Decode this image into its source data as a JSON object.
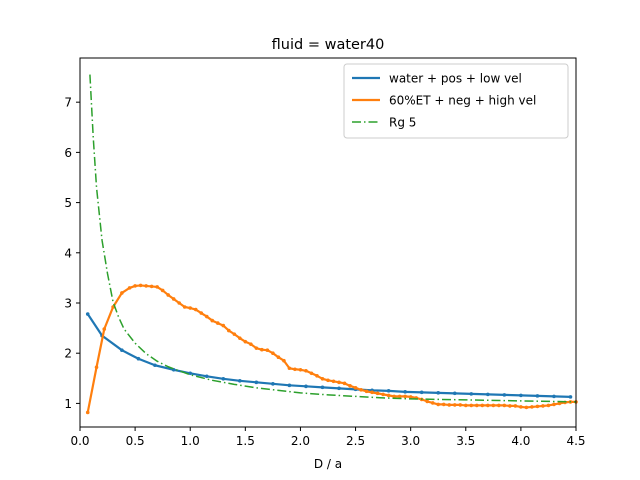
{
  "chart_data": {
    "type": "line",
    "title": "fluid = water40",
    "xlabel": "D / a",
    "ylabel": "",
    "xlim": [
      0.0,
      4.5
    ],
    "ylim": [
      0.53,
      7.88
    ],
    "xticks": [
      "0.0",
      "0.5",
      "1.0",
      "1.5",
      "2.0",
      "2.5",
      "3.0",
      "3.5",
      "4.0",
      "4.5"
    ],
    "yticks": [
      "1",
      "2",
      "3",
      "4",
      "5",
      "6",
      "7"
    ],
    "grid": false,
    "legend_position": "top-right",
    "series": [
      {
        "name": "water + pos + low vel",
        "color": "#1f77b4",
        "style": "solid-markers",
        "x": [
          0.07,
          0.2,
          0.38,
          0.53,
          0.68,
          0.85,
          1.0,
          1.15,
          1.3,
          1.45,
          1.6,
          1.75,
          1.9,
          2.05,
          2.2,
          2.35,
          2.5,
          2.65,
          2.8,
          2.95,
          3.1,
          3.25,
          3.4,
          3.55,
          3.7,
          3.85,
          4.0,
          4.15,
          4.3,
          4.45
        ],
        "y": [
          2.78,
          2.35,
          2.06,
          1.89,
          1.76,
          1.67,
          1.6,
          1.54,
          1.49,
          1.45,
          1.42,
          1.39,
          1.36,
          1.34,
          1.32,
          1.3,
          1.28,
          1.26,
          1.25,
          1.23,
          1.22,
          1.21,
          1.2,
          1.19,
          1.18,
          1.17,
          1.16,
          1.15,
          1.14,
          1.13
        ]
      },
      {
        "name": "60%ET + neg + high vel",
        "color": "#ff7f0e",
        "style": "solid-markers",
        "x": [
          0.07,
          0.15,
          0.22,
          0.3,
          0.38,
          0.45,
          0.5,
          0.55,
          0.6,
          0.65,
          0.7,
          0.75,
          0.8,
          0.85,
          0.9,
          0.95,
          1.0,
          1.05,
          1.1,
          1.15,
          1.2,
          1.25,
          1.3,
          1.35,
          1.4,
          1.45,
          1.5,
          1.55,
          1.6,
          1.65,
          1.7,
          1.75,
          1.8,
          1.85,
          1.9,
          1.95,
          2.0,
          2.05,
          2.1,
          2.15,
          2.2,
          2.25,
          2.3,
          2.35,
          2.4,
          2.45,
          2.5,
          2.55,
          2.6,
          2.65,
          2.7,
          2.75,
          2.8,
          2.85,
          2.9,
          2.95,
          3.0,
          3.05,
          3.1,
          3.15,
          3.2,
          3.25,
          3.3,
          3.35,
          3.4,
          3.45,
          3.5,
          3.55,
          3.6,
          3.65,
          3.7,
          3.75,
          3.8,
          3.85,
          3.9,
          3.95,
          4.0,
          4.05,
          4.1,
          4.15,
          4.2,
          4.25,
          4.3,
          4.35,
          4.4,
          4.45,
          4.5
        ],
        "y": [
          0.82,
          1.72,
          2.48,
          2.92,
          3.2,
          3.3,
          3.34,
          3.35,
          3.34,
          3.33,
          3.32,
          3.25,
          3.16,
          3.08,
          3.0,
          2.92,
          2.9,
          2.87,
          2.8,
          2.73,
          2.65,
          2.6,
          2.55,
          2.45,
          2.38,
          2.3,
          2.23,
          2.18,
          2.1,
          2.07,
          2.06,
          2.0,
          1.92,
          1.85,
          1.7,
          1.68,
          1.67,
          1.65,
          1.6,
          1.55,
          1.49,
          1.46,
          1.44,
          1.42,
          1.4,
          1.35,
          1.31,
          1.27,
          1.24,
          1.22,
          1.2,
          1.18,
          1.16,
          1.14,
          1.14,
          1.14,
          1.13,
          1.11,
          1.08,
          1.04,
          1.01,
          0.98,
          0.98,
          0.97,
          0.97,
          0.97,
          0.96,
          0.96,
          0.96,
          0.96,
          0.96,
          0.96,
          0.96,
          0.96,
          0.95,
          0.95,
          0.93,
          0.92,
          0.93,
          0.94,
          0.95,
          0.96,
          0.98,
          1.0,
          1.02,
          1.03,
          1.03
        ]
      },
      {
        "name": "Rg 5",
        "color": "#2ca02c",
        "style": "dashdot",
        "x": [
          0.09,
          0.12,
          0.15,
          0.2,
          0.25,
          0.3,
          0.35,
          0.4,
          0.5,
          0.6,
          0.7,
          0.8,
          0.9,
          1.0,
          1.2,
          1.4,
          1.6,
          1.8,
          2.0,
          2.25,
          2.5,
          2.75,
          3.0,
          3.5,
          4.0,
          4.5
        ],
        "y": [
          7.55,
          6.3,
          5.3,
          4.25,
          3.58,
          3.02,
          2.72,
          2.48,
          2.2,
          1.99,
          1.84,
          1.73,
          1.65,
          1.57,
          1.46,
          1.38,
          1.31,
          1.26,
          1.21,
          1.17,
          1.14,
          1.11,
          1.09,
          1.07,
          1.05,
          1.03
        ]
      }
    ]
  }
}
